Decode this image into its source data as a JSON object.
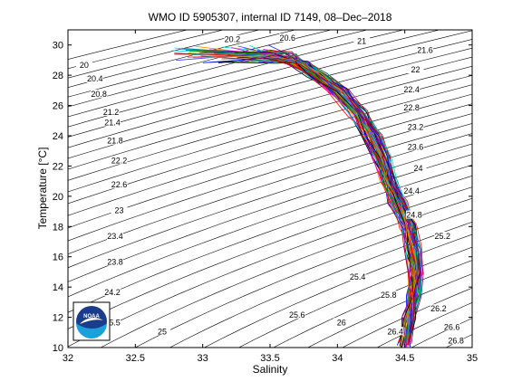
{
  "chart_data": {
    "type": "line",
    "title": "WMO ID 5905307, internal ID 7149, 08–Dec–2018",
    "xlabel": "Salinity",
    "ylabel": "Temperature [°C]",
    "xlim": [
      32,
      35
    ],
    "ylim": [
      10,
      31
    ],
    "xticks": [
      "32",
      "32.5",
      "33",
      "33.5",
      "34",
      "34.5",
      "35"
    ],
    "yticks": [
      "10",
      "12",
      "14",
      "16",
      "18",
      "20",
      "22",
      "24",
      "26",
      "28",
      "30"
    ],
    "grid": false,
    "density_contours": {
      "range": [
        19.8,
        27.0
      ],
      "step": 0.2,
      "labels": [
        {
          "text": "20",
          "s": 32.12,
          "t": 28.6
        },
        {
          "text": "20.2",
          "s": 33.22,
          "t": 30.3
        },
        {
          "text": "20.4",
          "s": 32.2,
          "t": 27.7
        },
        {
          "text": "20.8",
          "s": 32.23,
          "t": 26.7
        },
        {
          "text": "21.2",
          "s": 32.32,
          "t": 25.5
        },
        {
          "text": "21.4",
          "s": 32.33,
          "t": 24.8
        },
        {
          "text": "21.8",
          "s": 32.35,
          "t": 23.6
        },
        {
          "text": "22.2",
          "s": 32.38,
          "t": 22.3
        },
        {
          "text": "22.6",
          "s": 32.38,
          "t": 20.7
        },
        {
          "text": "23",
          "s": 32.38,
          "t": 19.0
        },
        {
          "text": "23.4",
          "s": 32.35,
          "t": 17.3
        },
        {
          "text": "23.8",
          "s": 32.35,
          "t": 15.6
        },
        {
          "text": "24.2",
          "s": 32.33,
          "t": 13.6
        },
        {
          "text": "25",
          "s": 32.7,
          "t": 11.0
        },
        {
          "text": "25.5",
          "s": 32.33,
          "t": 11.6
        },
        {
          "text": "20.6",
          "s": 33.63,
          "t": 30.4
        },
        {
          "text": "21",
          "s": 34.18,
          "t": 30.2
        },
        {
          "text": "21.6",
          "s": 34.65,
          "t": 29.6
        },
        {
          "text": "22",
          "s": 34.58,
          "t": 28.3
        },
        {
          "text": "22.4",
          "s": 34.55,
          "t": 27.0
        },
        {
          "text": "22.8",
          "s": 34.55,
          "t": 25.8
        },
        {
          "text": "23.2",
          "s": 34.58,
          "t": 24.5
        },
        {
          "text": "23.6",
          "s": 34.58,
          "t": 23.2
        },
        {
          "text": "24",
          "s": 34.6,
          "t": 21.8
        },
        {
          "text": "24.4",
          "s": 34.55,
          "t": 20.3
        },
        {
          "text": "24.8",
          "s": 34.57,
          "t": 18.7
        },
        {
          "text": "25.2",
          "s": 34.78,
          "t": 17.3
        },
        {
          "text": "25.4",
          "s": 34.15,
          "t": 14.6
        },
        {
          "text": "25.8",
          "s": 34.38,
          "t": 13.4
        },
        {
          "text": "25.6",
          "s": 33.7,
          "t": 12.1
        },
        {
          "text": "26",
          "s": 34.03,
          "t": 11.6
        },
        {
          "text": "26.2",
          "s": 34.75,
          "t": 12.5
        },
        {
          "text": "26.4",
          "s": 34.43,
          "t": 11.0
        },
        {
          "text": "26.6",
          "s": 34.85,
          "t": 11.3
        },
        {
          "text": "26.8",
          "s": 34.88,
          "t": 10.4
        }
      ]
    },
    "profiles": {
      "count": 60,
      "colors": [
        "#0000ff",
        "#00aa00",
        "#ff0000",
        "#00cccc",
        "#cc00cc",
        "#aaaa00",
        "#000000",
        "#4040ff",
        "#ff8000",
        "#800080",
        "#008080",
        "#b00000"
      ],
      "mean_curve": [
        {
          "s": 33.1,
          "t": 29.4
        },
        {
          "s": 33.5,
          "t": 29.1
        },
        {
          "s": 33.7,
          "t": 28.8
        },
        {
          "s": 33.85,
          "t": 28.0
        },
        {
          "s": 34.0,
          "t": 27.0
        },
        {
          "s": 34.15,
          "t": 25.5
        },
        {
          "s": 34.25,
          "t": 24.0
        },
        {
          "s": 34.32,
          "t": 22.5
        },
        {
          "s": 34.38,
          "t": 21.0
        },
        {
          "s": 34.45,
          "t": 19.5
        },
        {
          "s": 34.52,
          "t": 18.0
        },
        {
          "s": 34.56,
          "t": 16.5
        },
        {
          "s": 34.58,
          "t": 15.0
        },
        {
          "s": 34.56,
          "t": 13.5
        },
        {
          "s": 34.53,
          "t": 12.0
        },
        {
          "s": 34.5,
          "t": 10.2
        }
      ]
    },
    "logo": {
      "text": "NOAA",
      "colors": {
        "sky": "#1b3c8c",
        "sea": "#1aa0dc",
        "bird": "#ffffff"
      }
    }
  }
}
